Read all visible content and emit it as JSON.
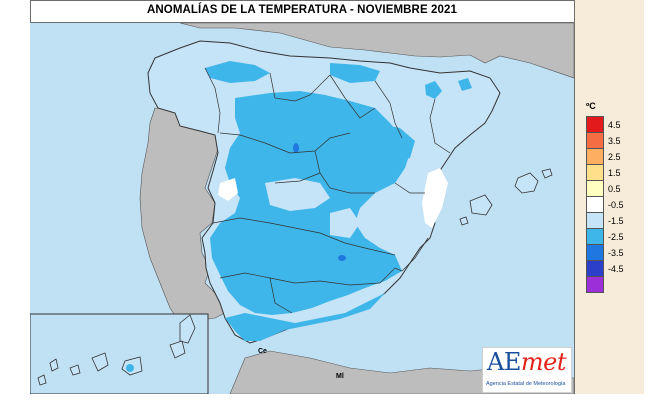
{
  "title": "ANOMALÍAS DE LA TEMPERATURA - NOVIEMBRE 2021",
  "legend": {
    "unit": "ºC",
    "classes": [
      {
        "label": "4.5",
        "color": "#e31a1c"
      },
      {
        "label": "3.5",
        "color": "#f46d43"
      },
      {
        "label": "2.5",
        "color": "#fdae61"
      },
      {
        "label": "1.5",
        "color": "#fee08b"
      },
      {
        "label": "0.5",
        "color": "#ffffbf"
      },
      {
        "label": "-0.5",
        "color": "#ffffff"
      },
      {
        "label": "-1.5",
        "color": "#c6e4f7"
      },
      {
        "label": "-2.5",
        "color": "#3fb6ea"
      },
      {
        "label": "-3.5",
        "color": "#1f78e0"
      },
      {
        "label": "-4.5",
        "color": "#2b3fc9"
      },
      {
        "label": "",
        "color": "#9d2fd8"
      }
    ]
  },
  "map_labels": {
    "ceuta": "Ce",
    "melilla": "Ml"
  },
  "colors": {
    "sea": "#c0e0f4",
    "neighbor_land": "#bdbdbd",
    "light_anomaly": "#c6e4f7",
    "medium_anomaly": "#3fb6ea",
    "strong_anomaly": "#1f78e0",
    "border": "#333333"
  },
  "logo": {
    "name_main": "AE",
    "name_accent": "met",
    "subtitle": "Agencia Estatal de Meteorología"
  }
}
